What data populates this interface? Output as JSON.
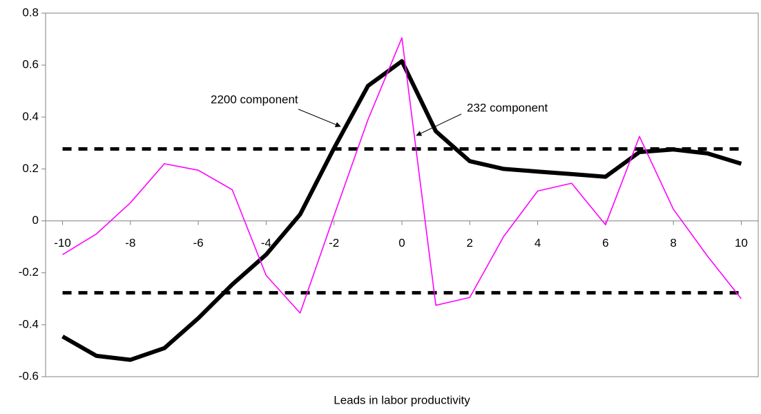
{
  "chart_data": {
    "type": "line",
    "x_label": "Leads in labor productivity",
    "x": [
      -10,
      -9,
      -8,
      -7,
      -6,
      -5,
      -4,
      -3,
      -2,
      -1,
      0,
      1,
      2,
      3,
      4,
      5,
      6,
      7,
      8,
      9,
      10
    ],
    "xlim": [
      -10.5,
      10.5
    ],
    "xticks": [
      -10,
      -8,
      -6,
      -4,
      -2,
      0,
      2,
      4,
      6,
      8,
      10
    ],
    "ylim": [
      -0.6,
      0.8
    ],
    "yticks": [
      -0.6,
      -0.4,
      -0.2,
      0,
      0.2,
      0.4,
      0.6,
      0.8
    ],
    "hlines": [
      0.277,
      -0.277
    ],
    "hline_color": "#000000",
    "series": [
      {
        "name": "2200 component",
        "color": "#000000",
        "values": [
          -0.445,
          -0.52,
          -0.535,
          -0.49,
          -0.375,
          -0.245,
          -0.13,
          0.025,
          0.28,
          0.52,
          0.615,
          0.345,
          0.23,
          0.2,
          0.19,
          0.18,
          0.17,
          0.265,
          0.275,
          0.26,
          0.22
        ]
      },
      {
        "name": "232 component",
        "color": "#ff00ff",
        "values": [
          -0.13,
          -0.05,
          0.07,
          0.22,
          0.195,
          0.12,
          -0.21,
          -0.355,
          0.02,
          0.39,
          0.705,
          -0.325,
          -0.295,
          -0.06,
          0.115,
          0.145,
          -0.015,
          0.325,
          0.045,
          -0.135,
          -0.3
        ]
      }
    ]
  }
}
